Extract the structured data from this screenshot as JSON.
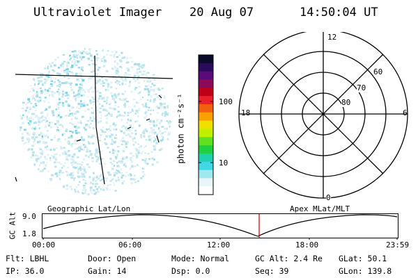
{
  "header": {
    "title": "Ultraviolet Imager",
    "date": "20 Aug 07",
    "time": "14:50:04 UT"
  },
  "colorbar": {
    "unit_label": "photon cm⁻²s⁻¹",
    "ticks": [
      "100",
      "10"
    ],
    "colors": [
      "#0a0a2a",
      "#2a0a5a",
      "#5a0a7a",
      "#8a0a5a",
      "#c00018",
      "#e8202a",
      "#f06010",
      "#f8a000",
      "#f0e000",
      "#c0f000",
      "#60e020",
      "#20d040",
      "#20d0b0",
      "#40d8e8",
      "#a0e8f0",
      "#e8f4f8",
      "#ffffff"
    ]
  },
  "polar": {
    "mlt_labels": {
      "top": "12",
      "left": "18",
      "right": "6",
      "bottom": "0"
    },
    "lat_labels": [
      "60",
      "70",
      "80"
    ]
  },
  "timeline": {
    "left_label": "Geographic Lat/Lon",
    "right_label": "Apex  MLat/MLT",
    "axis_title": "GC Alt",
    "y_ticks": [
      "9.0",
      "1.8"
    ],
    "x_ticks": [
      "00:00",
      "06:00",
      "12:00",
      "18:00",
      "23:59"
    ],
    "marker_time": "14:50"
  },
  "status": {
    "flt": "Flt: LBHL",
    "door": "Door: Open",
    "mode": "Mode: Normal",
    "gcalt": "GC Alt: 2.4 Re",
    "glat": "GLat:  50.1",
    "ip": "IP: 36.0",
    "gain": "Gain: 14",
    "dsp": "Dsp:     0.0",
    "seq": "Seq: 39",
    "glon": "GLon: 139.8"
  }
}
